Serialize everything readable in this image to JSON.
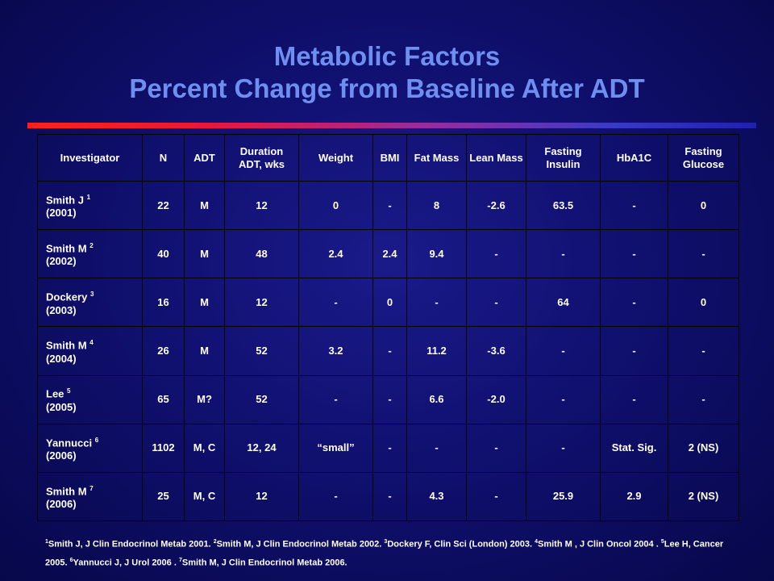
{
  "title": {
    "line1": "Metabolic Factors",
    "line2": "Percent Change from Baseline After ADT"
  },
  "colors": {
    "title": "#6f8ff0",
    "background": "#101070",
    "rule_start": "#ff2020",
    "rule_end": "#2020b0"
  },
  "table": {
    "headers": [
      "Investigator",
      "N",
      "ADT",
      "Duration ADT, wks",
      "Weight",
      "BMI",
      "Fat Mass",
      "Lean Mass",
      "Fasting Insulin",
      "HbA1C",
      "Fasting Glucose"
    ],
    "rows": [
      {
        "name": "Smith J",
        "ref": "1",
        "year": "(2001)",
        "cells": [
          "22",
          "M",
          "12",
          "0",
          "-",
          "8",
          "-2.6",
          "63.5",
          "-",
          "0"
        ]
      },
      {
        "name": "Smith M",
        "ref": "2",
        "year": "(2002)",
        "cells": [
          "40",
          "M",
          "48",
          "2.4",
          "2.4",
          "9.4",
          "-",
          "-",
          "-",
          "-"
        ]
      },
      {
        "name": "Dockery",
        "ref": "3",
        "year": "(2003)",
        "cells": [
          "16",
          "M",
          "12",
          "-",
          "0",
          "-",
          "-",
          "64",
          "-",
          "0"
        ]
      },
      {
        "name": "Smith M",
        "ref": "4",
        "year": "(2004)",
        "cells": [
          "26",
          "M",
          "52",
          "3.2",
          "-",
          "11.2",
          "-3.6",
          "-",
          "-",
          "-"
        ]
      },
      {
        "name": "Lee",
        "ref": "5",
        "year": "(2005)",
        "cells": [
          "65",
          "M?",
          "52",
          "-",
          "-",
          "6.6",
          "-2.0",
          "-",
          "-",
          "-"
        ]
      },
      {
        "name": "Yannucci",
        "ref": "6",
        "year": "(2006)",
        "cells": [
          "1102",
          "M, C",
          "12, 24",
          "“small”",
          "-",
          "-",
          "-",
          "-",
          "Stat. Sig.",
          "2 (NS)"
        ]
      },
      {
        "name": "Smith M",
        "ref": "7",
        "year": "(2006)",
        "cells": [
          "25",
          "M, C",
          "12",
          "-",
          "-",
          "4.3",
          "-",
          "25.9",
          "2.9",
          "2 (NS)"
        ]
      }
    ]
  },
  "footnotes": [
    {
      "ref": "1",
      "text": "Smith J, J Clin Endocrinol Metab 2001. "
    },
    {
      "ref": "2",
      "text": "Smith M, J Clin Endocrinol Metab  2002. "
    },
    {
      "ref": "3",
      "text": "Dockery F, Clin Sci (London) 2003. "
    },
    {
      "ref": "4",
      "text": "Smith M , J Clin Oncol 2004 . "
    },
    {
      "ref": "5",
      "text": "Lee H,  Cancer 2005.  "
    },
    {
      "ref": "6",
      "text": "Yannucci J,  J Urol  2006 . "
    },
    {
      "ref": "7",
      "text": "Smith M, J Clin Endocrinol Metab 2006."
    }
  ]
}
